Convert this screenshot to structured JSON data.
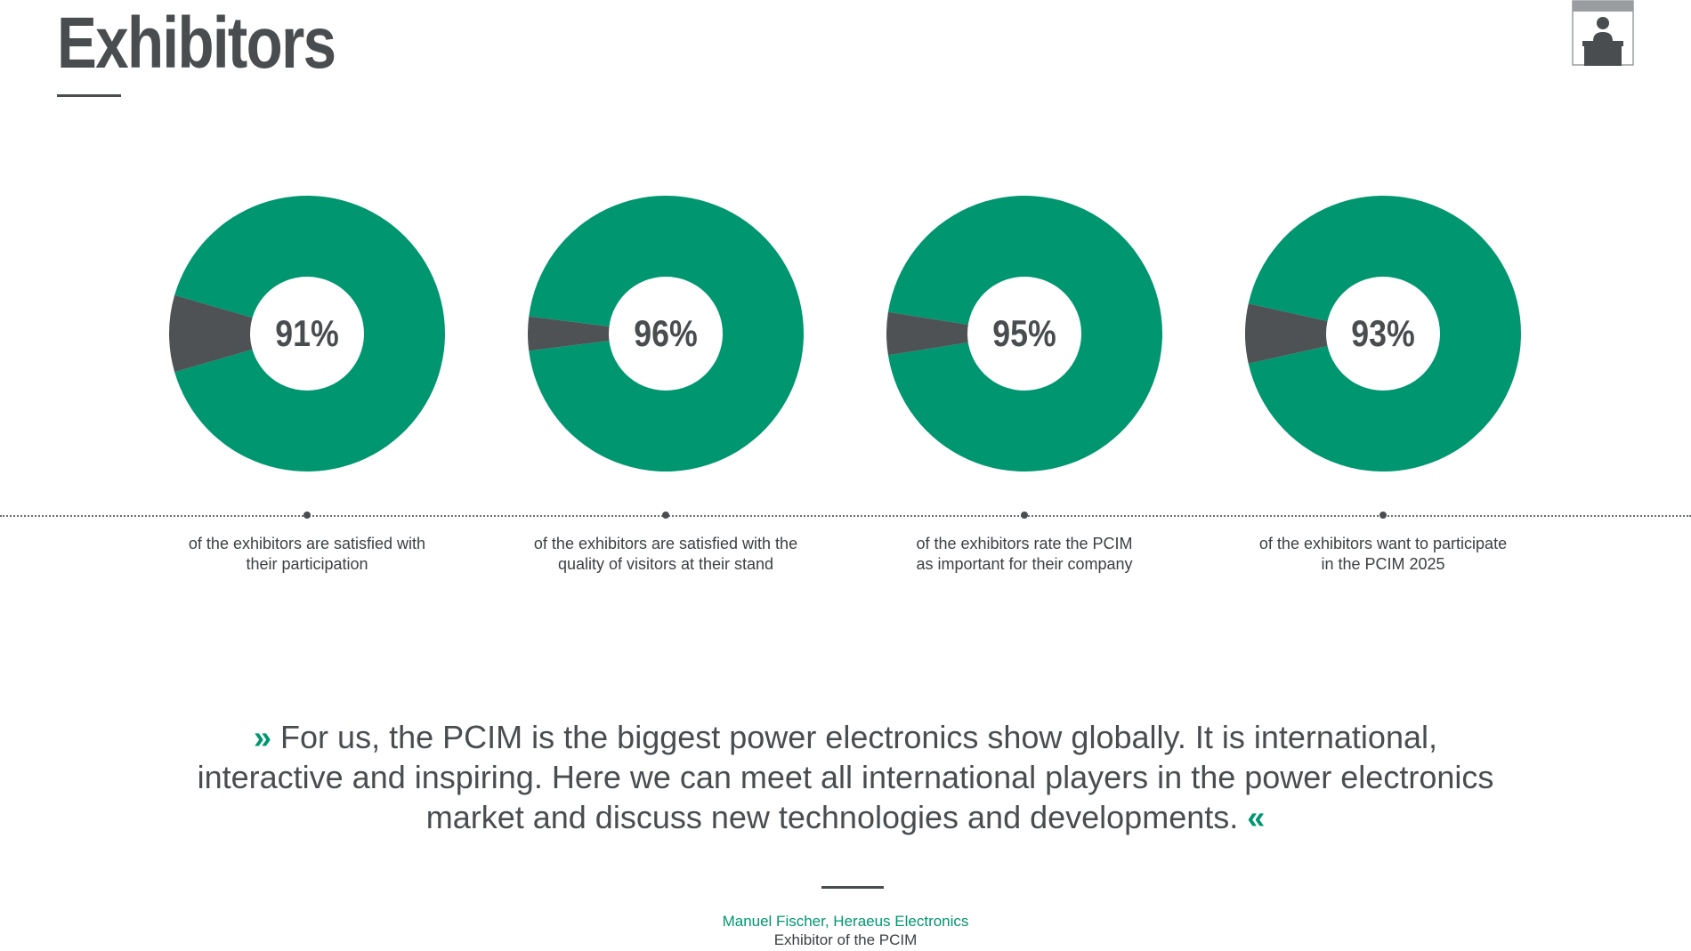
{
  "page": {
    "title": "Exhibitors"
  },
  "colors": {
    "accent": "#009670",
    "rest": "#4f5254",
    "text": "#4a4d50"
  },
  "icons": {
    "corner": "exhibitor-booth-icon"
  },
  "chart_data": [
    {
      "type": "pie",
      "title": "",
      "value": 91,
      "label": "91%",
      "caption": [
        "of the exhibitors are satisfied with",
        "their participation"
      ]
    },
    {
      "type": "pie",
      "title": "",
      "value": 96,
      "label": "96%",
      "caption": [
        "of the exhibitors are satisfied with the",
        "quality of visitors at their stand"
      ]
    },
    {
      "type": "pie",
      "title": "",
      "value": 95,
      "label": "95%",
      "caption": [
        "of the exhibitors rate the PCIM",
        "as important for their company"
      ]
    },
    {
      "type": "pie",
      "title": "",
      "value": 93,
      "label": "93%",
      "caption": [
        "of the exhibitors want to participate",
        "in the PCIM 2025"
      ]
    }
  ],
  "quote": {
    "open_mark": "»",
    "text": "For us, the PCIM is the biggest power electronics show globally. It is international, interactive and inspiring. Here we can meet all international players in the power electronics market and discuss new technologies and developments.",
    "close_mark": "«",
    "author": "Manuel Fischer, Heraeus Electronics",
    "role": "Exhibitor of the PCIM"
  }
}
